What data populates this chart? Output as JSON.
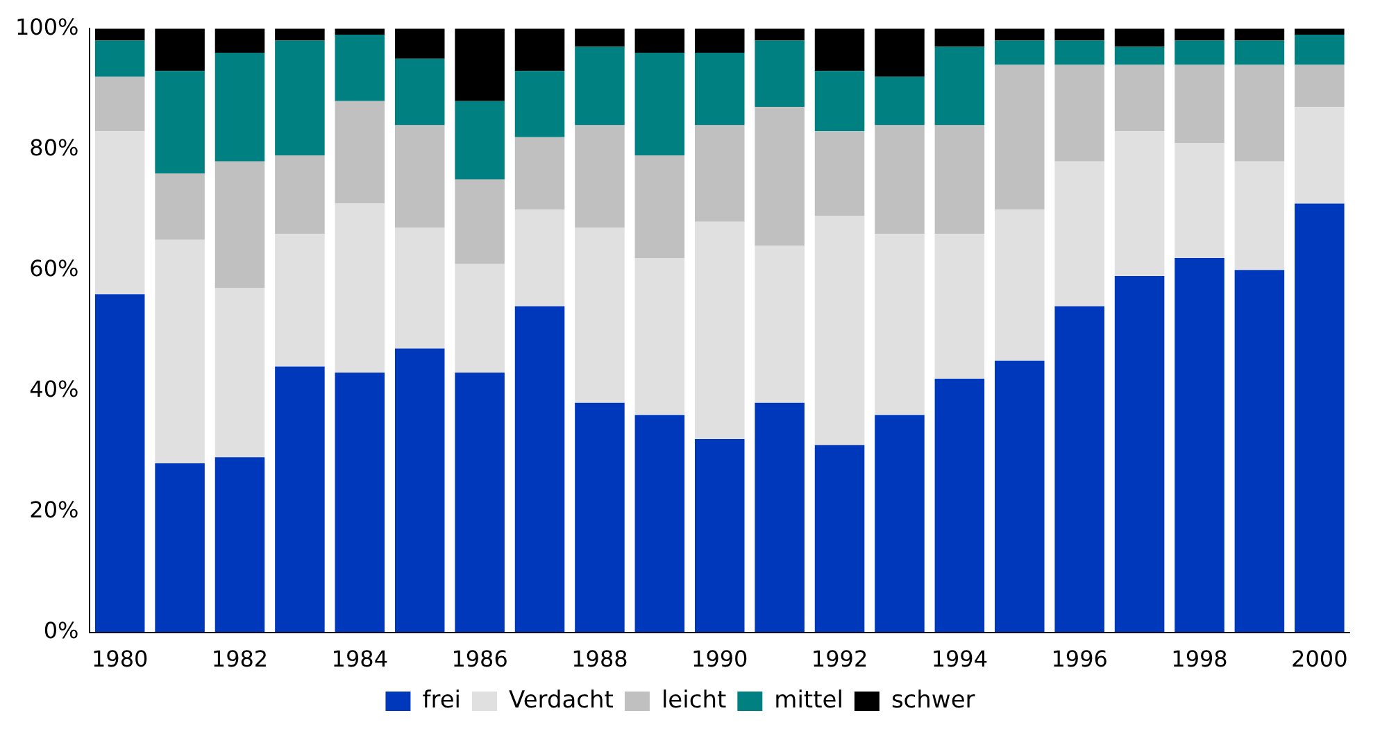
{
  "chart_data": {
    "type": "bar",
    "stacked": true,
    "categories": [
      "1980",
      null,
      "1982",
      null,
      "1984",
      null,
      "1986",
      null,
      "1988",
      null,
      "1990",
      null,
      "1992",
      null,
      "1994",
      null,
      "1996",
      null,
      "1998",
      null,
      "2000"
    ],
    "series": [
      {
        "name": "frei",
        "color": "#0038bc",
        "values": [
          56,
          28,
          29,
          44,
          43,
          47,
          43,
          54,
          38,
          36,
          32,
          38,
          31,
          36,
          42,
          45,
          54,
          59,
          62,
          60,
          71
        ]
      },
      {
        "name": "Verdacht",
        "color": "#e0e0e0",
        "values": [
          27,
          37,
          28,
          22,
          28,
          20,
          18,
          16,
          29,
          26,
          36,
          26,
          38,
          30,
          24,
          25,
          24,
          24,
          19,
          18,
          16
        ]
      },
      {
        "name": "leicht",
        "color": "#c0c0c0",
        "values": [
          9,
          11,
          21,
          13,
          17,
          17,
          14,
          12,
          17,
          17,
          16,
          23,
          14,
          18,
          18,
          24,
          16,
          11,
          13,
          16,
          7
        ]
      },
      {
        "name": "mittel",
        "color": "#008080",
        "values": [
          6,
          17,
          18,
          19,
          11,
          11,
          13,
          11,
          13,
          17,
          12,
          11,
          10,
          8,
          13,
          4,
          4,
          3,
          4,
          4,
          5
        ]
      },
      {
        "name": "schwer",
        "color": "#000000",
        "values": [
          2,
          7,
          4,
          2,
          1,
          5,
          12,
          7,
          3,
          4,
          4,
          2,
          7,
          8,
          3,
          2,
          2,
          3,
          2,
          2,
          1
        ]
      }
    ],
    "ylim": [
      0,
      100
    ],
    "yticks": [
      {
        "value": 0,
        "label": "0%"
      },
      {
        "value": 20,
        "label": "20%"
      },
      {
        "value": 40,
        "label": "40%"
      },
      {
        "value": 60,
        "label": "60%"
      },
      {
        "value": 80,
        "label": "80%"
      },
      {
        "value": 100,
        "label": "100%"
      }
    ],
    "grid": false,
    "legend": "bottom"
  }
}
